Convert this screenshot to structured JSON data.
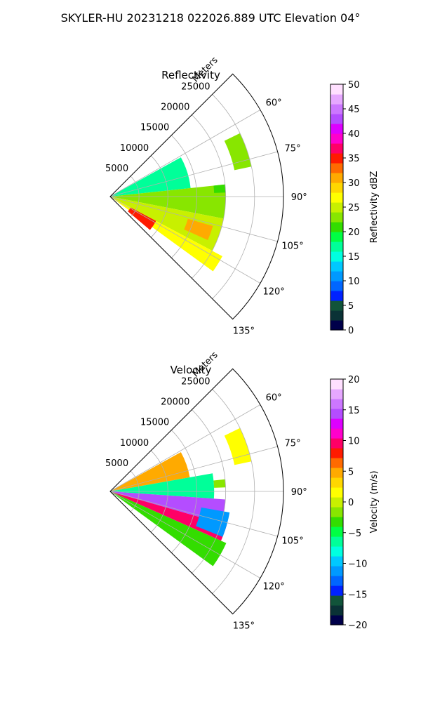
{
  "figure": {
    "suptitle": "SKYLER-HU  20231218  022026.889 UTC Elevation 04°"
  },
  "chart_data": [
    {
      "type": "heatmap",
      "projection": "polar-sector",
      "title": "Reflectivity",
      "radial_label": "Meters",
      "radial_ticks": [
        5000,
        10000,
        15000,
        20000,
        25000
      ],
      "radial_tick_labels": [
        "5000",
        "10000",
        "15000",
        "20000",
        "25000"
      ],
      "radial_max": 30000,
      "azimuth_range": [
        45,
        135
      ],
      "azimuth_ticks": [
        60,
        75,
        90,
        105,
        120,
        135
      ],
      "azimuth_tick_labels": [
        "60°",
        "75°",
        "90°",
        "105°",
        "120°",
        "135°"
      ],
      "colorbar": {
        "label": "Reflectivity dBZ",
        "range": [
          0,
          50
        ],
        "ticks": [
          0,
          5,
          10,
          15,
          20,
          25,
          30,
          35,
          40,
          45,
          50
        ],
        "tick_labels": [
          "0",
          "5",
          "10",
          "15",
          "20",
          "25",
          "30",
          "35",
          "40",
          "45",
          "50"
        ],
        "colors": [
          "#00004a",
          "#0a3236",
          "#11543a",
          "#0022ff",
          "#0066ff",
          "#0099ff",
          "#00c8ff",
          "#00ffe0",
          "#00ff99",
          "#00ff44",
          "#33dd00",
          "#88e600",
          "#c8f000",
          "#ffff00",
          "#ffd700",
          "#ffaa00",
          "#ff6a00",
          "#ff1a00",
          "#ff0066",
          "#ff00cc",
          "#dd00ff",
          "#b44dff",
          "#cc77ff",
          "#e6a8ff",
          "#ffe0ff"
        ]
      },
      "echoes": [
        {
          "az_from": 61,
          "az_to": 84,
          "r_from": 0,
          "r_to": 14000,
          "value": 16
        },
        {
          "az_from": 84,
          "az_to": 101,
          "r_from": 0,
          "r_to": 20000,
          "value": 22
        },
        {
          "az_from": 101,
          "az_to": 118,
          "r_from": 0,
          "r_to": 20000,
          "value": 25
        },
        {
          "az_from": 118,
          "az_to": 126,
          "r_from": 0,
          "r_to": 22000,
          "value": 27
        },
        {
          "az_from": 118,
          "az_to": 130,
          "r_from": 4000,
          "r_to": 9000,
          "value": 34
        },
        {
          "az_from": 106,
          "az_to": 114,
          "r_from": 14000,
          "r_to": 18500,
          "value": 31
        },
        {
          "az_from": 64,
          "az_to": 78,
          "r_from": 22000,
          "r_to": 25000,
          "value": 22
        },
        {
          "az_from": 84,
          "az_to": 88,
          "r_from": 18000,
          "r_to": 20000,
          "value": 20
        }
      ]
    },
    {
      "type": "heatmap",
      "projection": "polar-sector",
      "title": "Velocity",
      "radial_label": "Meters",
      "radial_ticks": [
        5000,
        10000,
        15000,
        20000,
        25000
      ],
      "radial_tick_labels": [
        "5000",
        "10000",
        "15000",
        "20000",
        "25000"
      ],
      "radial_max": 30000,
      "azimuth_range": [
        45,
        135
      ],
      "azimuth_ticks": [
        60,
        75,
        90,
        105,
        120,
        135
      ],
      "azimuth_tick_labels": [
        "60°",
        "75°",
        "90°",
        "105°",
        "120°",
        "135°"
      ],
      "colorbar": {
        "label": "Velocity (m/s)",
        "range": [
          -20,
          20
        ],
        "ticks": [
          -20,
          -15,
          -10,
          -5,
          0,
          5,
          10,
          15,
          20
        ],
        "tick_labels": [
          "−20",
          "−15",
          "−10",
          "−5",
          "0",
          "5",
          "10",
          "15",
          "20"
        ],
        "colors": [
          "#00004a",
          "#0a3236",
          "#11543a",
          "#0022ff",
          "#0066ff",
          "#0099ff",
          "#00c8ff",
          "#00ffe0",
          "#00ff99",
          "#00ff44",
          "#33dd00",
          "#88e600",
          "#c8f000",
          "#ffff00",
          "#ffd700",
          "#ffaa00",
          "#ff6a00",
          "#ff1a00",
          "#ff0066",
          "#ff00cc",
          "#dd00ff",
          "#b44dff",
          "#cc77ff",
          "#e6a8ff",
          "#ffe0ff"
        ]
      },
      "echoes": [
        {
          "az_from": 61,
          "az_to": 80,
          "r_from": 0,
          "r_to": 14000,
          "value": 4
        },
        {
          "az_from": 80,
          "az_to": 94,
          "r_from": 0,
          "r_to": 18000,
          "value": -6
        },
        {
          "az_from": 94,
          "az_to": 106,
          "r_from": 0,
          "r_to": 20000,
          "value": 14
        },
        {
          "az_from": 106,
          "az_to": 114,
          "r_from": 0,
          "r_to": 21000,
          "value": 10
        },
        {
          "az_from": 114,
          "az_to": 126,
          "r_from": 0,
          "r_to": 22000,
          "value": -3
        },
        {
          "az_from": 100,
          "az_to": 112,
          "r_from": 16000,
          "r_to": 21000,
          "value": -11
        },
        {
          "az_from": 64,
          "az_to": 78,
          "r_from": 22000,
          "r_to": 25000,
          "value": 2
        },
        {
          "az_from": 84,
          "az_to": 88,
          "r_from": 18000,
          "r_to": 20000,
          "value": -2
        }
      ]
    }
  ]
}
